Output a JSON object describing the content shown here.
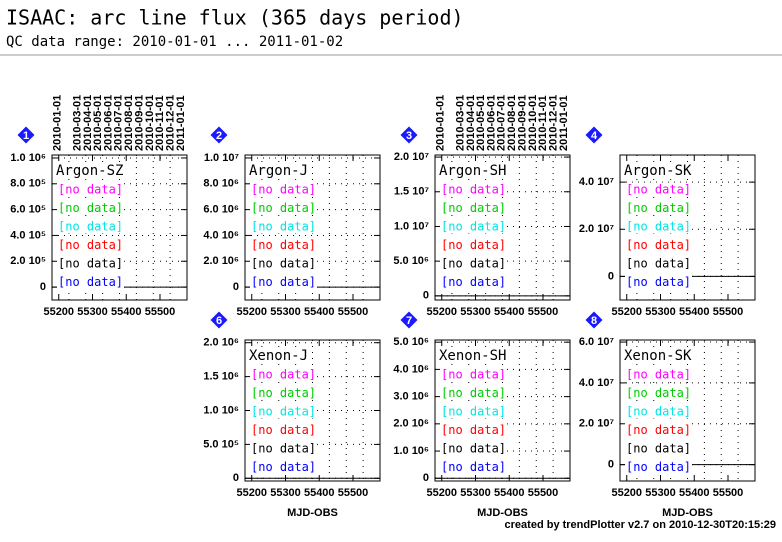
{
  "title": "ISAAC: arc line flux (365 days period)",
  "subtitle": "QC data range: 2010-01-01 ... 2011-01-02",
  "footer": "created by trendPlotter v2.7 on 2010-12-30T20:15:29",
  "chart_data": [
    {
      "type": "line",
      "number": "1",
      "title": "Argon-SZ",
      "xlim": [
        55180,
        55580
      ],
      "xticks": [
        55200,
        55300,
        55400,
        55500
      ],
      "ylim": [
        -100000,
        1023000
      ],
      "yticks": [
        0,
        {
          "value": 200000,
          "label": "2.0 10⁵"
        },
        {
          "value": 400000,
          "label": "4.0 10⁵"
        },
        {
          "value": 600000,
          "label": "6.0 10⁵"
        },
        {
          "value": 800000,
          "label": "8.0 10⁵"
        },
        {
          "value": 1000000,
          "label": "1.0 10⁶"
        }
      ],
      "top_ticks": [
        {
          "value": 55197,
          "label": "2010-01-01"
        },
        {
          "value": 55256,
          "label": "2010-03-01"
        },
        {
          "value": 55287,
          "label": "2010-04-01"
        },
        {
          "value": 55317,
          "label": "2010-05-01"
        },
        {
          "value": 55348,
          "label": "2010-06-01"
        },
        {
          "value": 55378,
          "label": "2010-07-01"
        },
        {
          "value": 55409,
          "label": "2010-08-01"
        },
        {
          "value": 55440,
          "label": "2010-09-01"
        },
        {
          "value": 55470,
          "label": "2010-10-01"
        },
        {
          "value": 55501,
          "label": "2010-11-01"
        },
        {
          "value": 55531,
          "label": "2010-12-01"
        },
        {
          "value": 55562,
          "label": "2011-01-01"
        }
      ],
      "series": [
        {
          "name": "[no data]",
          "color": "#ff00ff",
          "values": []
        },
        {
          "name": "[no data]",
          "color": "#00cc00",
          "values": []
        },
        {
          "name": "[no data]",
          "color": "#00e5e5",
          "values": []
        },
        {
          "name": "[no data]",
          "color": "#ff0000",
          "values": []
        },
        {
          "name": "[no data]",
          "color": "#000000",
          "values": []
        },
        {
          "name": "[no data]",
          "color": "#0000ff",
          "values": []
        }
      ]
    },
    {
      "type": "line",
      "number": "2",
      "title": "Argon-J",
      "xlim": [
        55180,
        55580
      ],
      "xticks": [
        55200,
        55300,
        55400,
        55500
      ],
      "ylim": [
        -1000000,
        10230000
      ],
      "yticks": [
        0,
        {
          "value": 2000000,
          "label": "2.0 10⁶"
        },
        {
          "value": 4000000,
          "label": "4.0 10⁶"
        },
        {
          "value": 6000000,
          "label": "6.0 10⁶"
        },
        {
          "value": 8000000,
          "label": "8.0 10⁶"
        },
        {
          "value": 10000000,
          "label": "1.0 10⁷"
        }
      ],
      "series": [
        {
          "name": "[no data]",
          "color": "#ff00ff",
          "values": []
        },
        {
          "name": "[no data]",
          "color": "#00cc00",
          "values": []
        },
        {
          "name": "[no data]",
          "color": "#00e5e5",
          "values": []
        },
        {
          "name": "[no data]",
          "color": "#ff0000",
          "values": []
        },
        {
          "name": "[no data]",
          "color": "#000000",
          "values": []
        },
        {
          "name": "[no data]",
          "color": "#0000ff",
          "values": []
        }
      ]
    },
    {
      "type": "line",
      "number": "3",
      "title": "Argon-SH",
      "xlim": [
        55180,
        55580
      ],
      "xticks": [
        55200,
        55300,
        55400,
        55500
      ],
      "ylim": [
        -600000,
        20300000
      ],
      "yticks": [
        0,
        {
          "value": 5000000,
          "label": "5.0 10⁶"
        },
        {
          "value": 10000000,
          "label": "1.0 10⁷"
        },
        {
          "value": 15000000,
          "label": "1.5 10⁷"
        },
        {
          "value": 20000000,
          "label": "2.0 10⁷"
        }
      ],
      "top_ticks": [
        {
          "value": 55197,
          "label": "2010-01-01"
        },
        {
          "value": 55256,
          "label": "2010-03-01"
        },
        {
          "value": 55287,
          "label": "2010-04-01"
        },
        {
          "value": 55317,
          "label": "2010-05-01"
        },
        {
          "value": 55348,
          "label": "2010-06-01"
        },
        {
          "value": 55378,
          "label": "2010-07-01"
        },
        {
          "value": 55409,
          "label": "2010-08-01"
        },
        {
          "value": 55440,
          "label": "2010-09-01"
        },
        {
          "value": 55470,
          "label": "2010-10-01"
        },
        {
          "value": 55501,
          "label": "2010-11-01"
        },
        {
          "value": 55531,
          "label": "2010-12-01"
        },
        {
          "value": 55562,
          "label": "2011-01-01"
        }
      ],
      "series": [
        {
          "name": "[no data]",
          "color": "#ff00ff",
          "values": []
        },
        {
          "name": "[no data]",
          "color": "#00cc00",
          "values": []
        },
        {
          "name": "[no data]",
          "color": "#00e5e5",
          "values": []
        },
        {
          "name": "[no data]",
          "color": "#ff0000",
          "values": []
        },
        {
          "name": "[no data]",
          "color": "#000000",
          "values": []
        },
        {
          "name": "[no data]",
          "color": "#0000ff",
          "values": []
        }
      ]
    },
    {
      "type": "line",
      "number": "4",
      "title": "Argon-SK",
      "xlim": [
        55180,
        55580
      ],
      "xticks": [
        55200,
        55300,
        55400,
        55500
      ],
      "ylim": [
        -10000000,
        51500000
      ],
      "yticks": [
        0,
        {
          "value": 20000000,
          "label": "2.0 10⁷"
        },
        {
          "value": 40000000,
          "label": "4.0 10⁷"
        }
      ],
      "series": [
        {
          "name": "[no data]",
          "color": "#ff00ff",
          "values": []
        },
        {
          "name": "[no data]",
          "color": "#00cc00",
          "values": []
        },
        {
          "name": "[no data]",
          "color": "#00e5e5",
          "values": []
        },
        {
          "name": "[no data]",
          "color": "#ff0000",
          "values": []
        },
        {
          "name": "[no data]",
          "color": "#000000",
          "values": []
        },
        {
          "name": "[no data]",
          "color": "#0000ff",
          "values": []
        }
      ]
    },
    {
      "type": "line",
      "number": "6",
      "title": "Xenon-J",
      "xlabel": "MJD-OBS",
      "xlim": [
        55180,
        55580
      ],
      "xticks": [
        55200,
        55300,
        55400,
        55500
      ],
      "ylim": [
        -40000,
        2040000
      ],
      "yticks": [
        0,
        {
          "value": 500000,
          "label": "5.0 10⁵"
        },
        {
          "value": 1000000,
          "label": "1.0 10⁶"
        },
        {
          "value": 1500000,
          "label": "1.5 10⁶"
        },
        {
          "value": 2000000,
          "label": "2.0 10⁶"
        }
      ],
      "series": [
        {
          "name": "[no data]",
          "color": "#ff00ff",
          "values": []
        },
        {
          "name": "[no data]",
          "color": "#00cc00",
          "values": []
        },
        {
          "name": "[no data]",
          "color": "#00e5e5",
          "values": []
        },
        {
          "name": "[no data]",
          "color": "#ff0000",
          "values": []
        },
        {
          "name": "[no data]",
          "color": "#000000",
          "values": []
        },
        {
          "name": "[no data]",
          "color": "#0000ff",
          "values": []
        }
      ]
    },
    {
      "type": "line",
      "number": "7",
      "title": "Xenon-SH",
      "xlabel": "MJD-OBS",
      "xlim": [
        55180,
        55580
      ],
      "xticks": [
        55200,
        55300,
        55400,
        55500
      ],
      "ylim": [
        -100000,
        5080000
      ],
      "yticks": [
        0,
        {
          "value": 1000000,
          "label": "1.0 10⁶"
        },
        {
          "value": 2000000,
          "label": "2.0 10⁶"
        },
        {
          "value": 3000000,
          "label": "3.0 10⁶"
        },
        {
          "value": 4000000,
          "label": "4.0 10⁶"
        },
        {
          "value": 5000000,
          "label": "5.0 10⁶"
        }
      ],
      "series": [
        {
          "name": "[no data]",
          "color": "#ff00ff",
          "values": []
        },
        {
          "name": "[no data]",
          "color": "#00cc00",
          "values": []
        },
        {
          "name": "[no data]",
          "color": "#00e5e5",
          "values": []
        },
        {
          "name": "[no data]",
          "color": "#ff0000",
          "values": []
        },
        {
          "name": "[no data]",
          "color": "#000000",
          "values": []
        },
        {
          "name": "[no data]",
          "color": "#0000ff",
          "values": []
        }
      ]
    },
    {
      "type": "line",
      "number": "8",
      "title": "Xenon-SK",
      "xlabel": "MJD-OBS",
      "xlim": [
        55180,
        55580
      ],
      "xticks": [
        55200,
        55300,
        55400,
        55500
      ],
      "ylim": [
        -8000000,
        61000000
      ],
      "yticks": [
        0,
        {
          "value": 20000000,
          "label": "2.0 10⁷"
        },
        {
          "value": 40000000,
          "label": "4.0 10⁷"
        },
        {
          "value": 60000000,
          "label": "6.0 10⁷"
        }
      ],
      "series": [
        {
          "name": "[no data]",
          "color": "#ff00ff",
          "values": []
        },
        {
          "name": "[no data]",
          "color": "#00cc00",
          "values": []
        },
        {
          "name": "[no data]",
          "color": "#00e5e5",
          "values": []
        },
        {
          "name": "[no data]",
          "color": "#ff0000",
          "values": []
        },
        {
          "name": "[no data]",
          "color": "#000000",
          "values": []
        },
        {
          "name": "[no data]",
          "color": "#0000ff",
          "values": []
        }
      ]
    }
  ]
}
